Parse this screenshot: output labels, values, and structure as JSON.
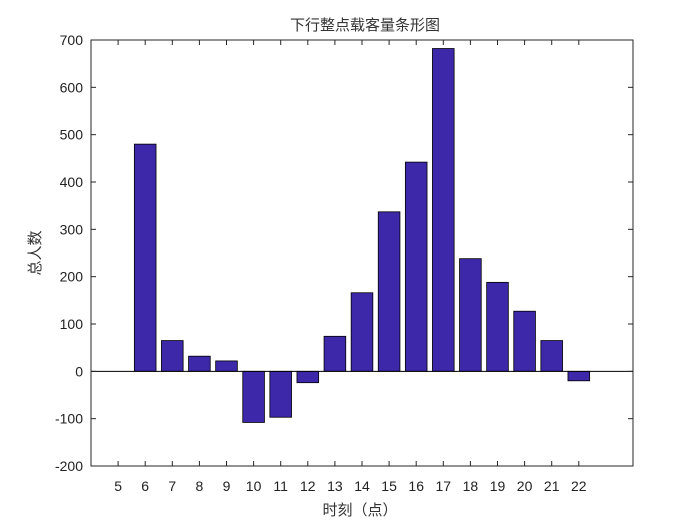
{
  "chart_data": {
    "type": "bar",
    "title": "下行整点载客量条形图",
    "xlabel": "时刻（点）",
    "ylabel": "总人数",
    "categories": [
      "5",
      "6",
      "7",
      "8",
      "9",
      "10",
      "11",
      "12",
      "13",
      "14",
      "15",
      "16",
      "17",
      "18",
      "19",
      "20",
      "21",
      "22"
    ],
    "values": [
      0,
      480,
      65,
      32,
      22,
      -108,
      -97,
      -24,
      74,
      166,
      337,
      442,
      682,
      238,
      188,
      127,
      65,
      -20
    ],
    "xlim": [
      4,
      24
    ],
    "ylim": [
      -200,
      700
    ],
    "yticks": [
      -200,
      -100,
      0,
      100,
      200,
      300,
      400,
      500,
      600,
      700
    ],
    "bar_color": "#3c28a8",
    "grid": false,
    "legend": "none"
  }
}
